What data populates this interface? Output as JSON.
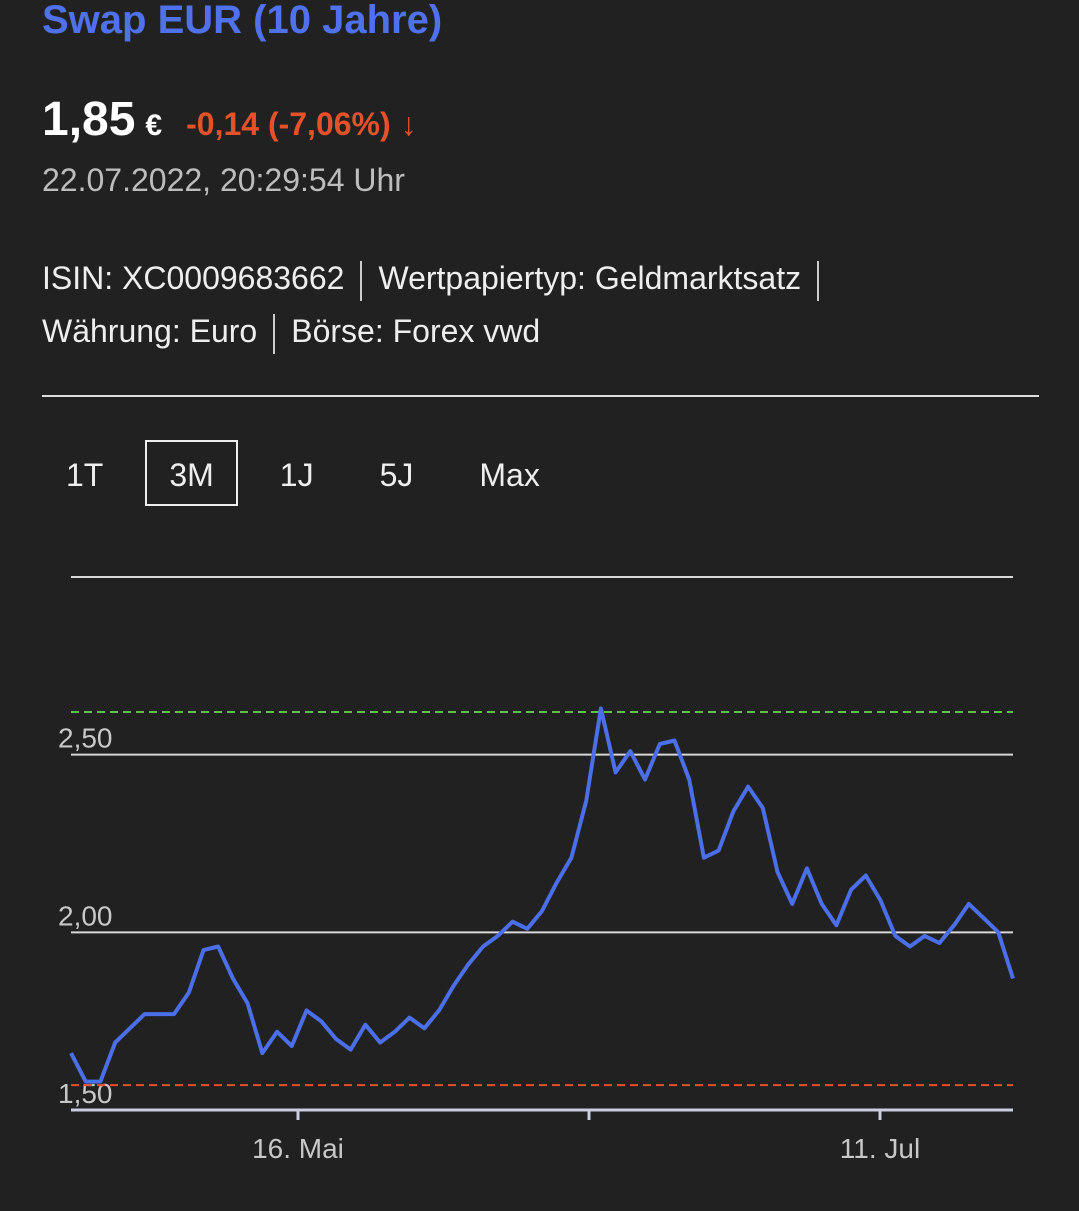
{
  "header": {
    "title": "Swap EUR (10 Jahre)",
    "price": "1,85",
    "currency": "€",
    "change": "-0,14 (-7,06%)",
    "change_icon": "arrow-down",
    "date": "22.07.2022, 20:29:54 Uhr"
  },
  "meta": {
    "isin": "ISIN: XC0009683662",
    "type": "Wertpapiertyp: Geldmarktsatz",
    "currency": "Währung: Euro",
    "exchange": "Börse: Forex vwd"
  },
  "tabs": [
    {
      "label": "1T"
    },
    {
      "label": "3M",
      "active": true
    },
    {
      "label": "1J"
    },
    {
      "label": "5J"
    },
    {
      "label": "Max"
    }
  ],
  "colors": {
    "line": "#4a6fe8",
    "high": "#5cc24a",
    "low": "#e4522a",
    "title": "#4f72ec"
  },
  "chart_data": {
    "type": "line",
    "ylim": [
      1.5,
      3.0
    ],
    "y_ticks": [
      {
        "value": 1.5,
        "label": "1,50"
      },
      {
        "value": 2.0,
        "label": "2,00"
      },
      {
        "value": 2.5,
        "label": "2,50"
      }
    ],
    "x_ticks": [
      "16. Mai",
      "",
      "11. Jul"
    ],
    "high_line": 2.62,
    "low_line": 1.57,
    "grid": true,
    "values": [
      1.66,
      1.58,
      1.58,
      1.69,
      1.73,
      1.77,
      1.77,
      1.77,
      1.83,
      1.95,
      1.96,
      1.87,
      1.8,
      1.66,
      1.72,
      1.68,
      1.78,
      1.75,
      1.7,
      1.67,
      1.74,
      1.69,
      1.72,
      1.76,
      1.73,
      1.78,
      1.85,
      1.91,
      1.96,
      1.99,
      2.03,
      2.01,
      2.06,
      2.14,
      2.21,
      2.37,
      2.63,
      2.45,
      2.51,
      2.43,
      2.53,
      2.54,
      2.43,
      2.21,
      2.23,
      2.34,
      2.41,
      2.35,
      2.17,
      2.08,
      2.18,
      2.08,
      2.02,
      2.12,
      2.16,
      2.09,
      1.99,
      1.96,
      1.99,
      1.97,
      2.02,
      2.08,
      2.04,
      2.0,
      1.87
    ]
  }
}
